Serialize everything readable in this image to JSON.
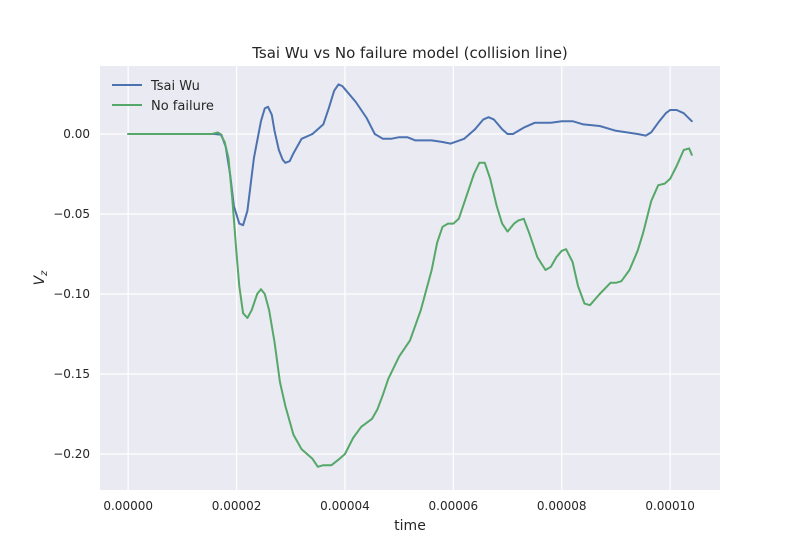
{
  "chart_data": {
    "type": "line",
    "title": "Tsai Wu vs No failure model (collision line)",
    "xlabel": "time",
    "ylabel": "V_z",
    "xlim": [
      -5.2e-06,
      0.0001092
    ],
    "ylim": [
      -0.2225,
      0.0425
    ],
    "xticks": [
      0,
      2e-05,
      4e-05,
      6e-05,
      8e-05,
      0.0001
    ],
    "xtick_labels": [
      "0.00000",
      "0.00002",
      "0.00004",
      "0.00006",
      "0.00008",
      "0.00010"
    ],
    "yticks": [
      0.0,
      -0.05,
      -0.1,
      -0.15,
      -0.2
    ],
    "ytick_labels": [
      "0.00",
      "−0.05",
      "−0.10",
      "−0.15",
      "−0.20"
    ],
    "grid": true,
    "legend": "top-left",
    "series": [
      {
        "name": "Tsai Wu",
        "color": "#4c72b0",
        "points": [
          [
            0,
            0
          ],
          [
            1.6e-05,
            0
          ],
          [
            1.72e-05,
            -0.0005
          ],
          [
            1.8e-05,
            -0.008
          ],
          [
            1.88e-05,
            -0.025
          ],
          [
            1.95e-05,
            -0.045
          ],
          [
            2.05e-05,
            -0.056
          ],
          [
            2.12e-05,
            -0.057
          ],
          [
            2.2e-05,
            -0.048
          ],
          [
            2.32e-05,
            -0.015
          ],
          [
            2.45e-05,
            0.008
          ],
          [
            2.52e-05,
            0.016
          ],
          [
            2.58e-05,
            0.017
          ],
          [
            2.65e-05,
            0.012
          ],
          [
            2.7e-05,
            0.002
          ],
          [
            2.78e-05,
            -0.01
          ],
          [
            2.85e-05,
            -0.016
          ],
          [
            2.9e-05,
            -0.018
          ],
          [
            2.98e-05,
            -0.017
          ],
          [
            3.05e-05,
            -0.012
          ],
          [
            3.2e-05,
            -0.003
          ],
          [
            3.4e-05,
            0.0
          ],
          [
            3.6e-05,
            0.006
          ],
          [
            3.7e-05,
            0.016
          ],
          [
            3.8e-05,
            0.027
          ],
          [
            3.88e-05,
            0.031
          ],
          [
            3.95e-05,
            0.03
          ],
          [
            4e-05,
            0.028
          ],
          [
            4.2e-05,
            0.02
          ],
          [
            4.4e-05,
            0.01
          ],
          [
            4.55e-05,
            0.0
          ],
          [
            4.7e-05,
            -0.003
          ],
          [
            4.85e-05,
            -0.003
          ],
          [
            5e-05,
            -0.002
          ],
          [
            5.15e-05,
            -0.002
          ],
          [
            5.3e-05,
            -0.004
          ],
          [
            5.6e-05,
            -0.004
          ],
          [
            5.8e-05,
            -0.005
          ],
          [
            5.95e-05,
            -0.006
          ],
          [
            6.2e-05,
            -0.003
          ],
          [
            6.4e-05,
            0.003
          ],
          [
            6.55e-05,
            0.009
          ],
          [
            6.65e-05,
            0.0105
          ],
          [
            6.75e-05,
            0.009
          ],
          [
            6.9e-05,
            0.003
          ],
          [
            7e-05,
            0.0
          ],
          [
            7.1e-05,
            0.0
          ],
          [
            7.3e-05,
            0.004
          ],
          [
            7.5e-05,
            0.007
          ],
          [
            7.8e-05,
            0.007
          ],
          [
            8e-05,
            0.008
          ],
          [
            8.2e-05,
            0.008
          ],
          [
            8.4e-05,
            0.006
          ],
          [
            8.7e-05,
            0.005
          ],
          [
            9e-05,
            0.002
          ],
          [
            9.2e-05,
            0.001
          ],
          [
            9.4e-05,
            0.0
          ],
          [
            9.55e-05,
            -0.001
          ],
          [
            9.65e-05,
            0.001
          ],
          [
            9.8e-05,
            0.008
          ],
          [
            9.92e-05,
            0.013
          ],
          [
            0.0001,
            0.015
          ],
          [
            0.0001012,
            0.015
          ],
          [
            0.0001025,
            0.013
          ],
          [
            0.000104,
            0.008
          ]
        ]
      },
      {
        "name": "No failure",
        "color": "#55a868",
        "points": [
          [
            0,
            0
          ],
          [
            1.55e-05,
            0
          ],
          [
            1.65e-05,
            0.001
          ],
          [
            1.7e-05,
            0.0
          ],
          [
            1.78e-05,
            -0.005
          ],
          [
            1.85e-05,
            -0.015
          ],
          [
            1.92e-05,
            -0.04
          ],
          [
            2e-05,
            -0.075
          ],
          [
            2.05e-05,
            -0.095
          ],
          [
            2.12e-05,
            -0.112
          ],
          [
            2.2e-05,
            -0.115
          ],
          [
            2.28e-05,
            -0.11
          ],
          [
            2.38e-05,
            -0.1
          ],
          [
            2.45e-05,
            -0.097
          ],
          [
            2.52e-05,
            -0.1
          ],
          [
            2.6e-05,
            -0.11
          ],
          [
            2.7e-05,
            -0.13
          ],
          [
            2.8e-05,
            -0.155
          ],
          [
            2.9e-05,
            -0.17
          ],
          [
            3.05e-05,
            -0.188
          ],
          [
            3.2e-05,
            -0.197
          ],
          [
            3.4e-05,
            -0.203
          ],
          [
            3.5e-05,
            -0.208
          ],
          [
            3.6e-05,
            -0.207
          ],
          [
            3.75e-05,
            -0.207
          ],
          [
            3.9e-05,
            -0.203
          ],
          [
            4e-05,
            -0.2
          ],
          [
            4.15e-05,
            -0.19
          ],
          [
            4.3e-05,
            -0.183
          ],
          [
            4.5e-05,
            -0.178
          ],
          [
            4.6e-05,
            -0.172
          ],
          [
            4.7e-05,
            -0.163
          ],
          [
            4.8e-05,
            -0.153
          ],
          [
            5e-05,
            -0.139
          ],
          [
            5.2e-05,
            -0.129
          ],
          [
            5.4e-05,
            -0.11
          ],
          [
            5.6e-05,
            -0.085
          ],
          [
            5.7e-05,
            -0.068
          ],
          [
            5.8e-05,
            -0.058
          ],
          [
            5.9e-05,
            -0.056
          ],
          [
            6e-05,
            -0.056
          ],
          [
            6.1e-05,
            -0.053
          ],
          [
            6.25e-05,
            -0.038
          ],
          [
            6.38e-05,
            -0.025
          ],
          [
            6.48e-05,
            -0.018
          ],
          [
            6.58e-05,
            -0.018
          ],
          [
            6.68e-05,
            -0.028
          ],
          [
            6.8e-05,
            -0.045
          ],
          [
            6.9e-05,
            -0.056
          ],
          [
            7e-05,
            -0.061
          ],
          [
            7.12e-05,
            -0.056
          ],
          [
            7.2e-05,
            -0.054
          ],
          [
            7.3e-05,
            -0.053
          ],
          [
            7.4e-05,
            -0.062
          ],
          [
            7.55e-05,
            -0.077
          ],
          [
            7.7e-05,
            -0.085
          ],
          [
            7.8e-05,
            -0.083
          ],
          [
            7.9e-05,
            -0.077
          ],
          [
            8e-05,
            -0.073
          ],
          [
            8.08e-05,
            -0.072
          ],
          [
            8.2e-05,
            -0.08
          ],
          [
            8.3e-05,
            -0.095
          ],
          [
            8.42e-05,
            -0.106
          ],
          [
            8.52e-05,
            -0.107
          ],
          [
            8.7e-05,
            -0.1
          ],
          [
            8.9e-05,
            -0.093
          ],
          [
            9e-05,
            -0.093
          ],
          [
            9.1e-05,
            -0.092
          ],
          [
            9.25e-05,
            -0.085
          ],
          [
            9.4e-05,
            -0.073
          ],
          [
            9.5e-05,
            -0.062
          ],
          [
            9.65e-05,
            -0.042
          ],
          [
            9.78e-05,
            -0.032
          ],
          [
            9.9e-05,
            -0.031
          ],
          [
            0.0001,
            -0.028
          ],
          [
            0.0001012,
            -0.02
          ],
          [
            0.0001025,
            -0.01
          ],
          [
            0.0001035,
            -0.009
          ],
          [
            0.000104,
            -0.013
          ]
        ]
      }
    ]
  }
}
